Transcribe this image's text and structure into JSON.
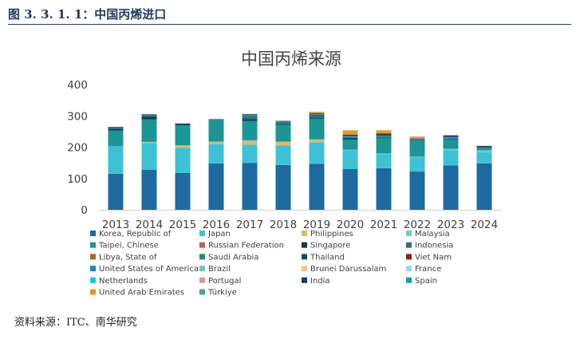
{
  "figure": {
    "label": "图 3. 3. 1. 1：中国丙烯进口",
    "source": "资料来源：ITC、南华研究"
  },
  "chart_data": {
    "type": "bar",
    "stacked": true,
    "title": "中国丙烯来源",
    "xlabel": "",
    "ylabel": "",
    "ylim": [
      0,
      400
    ],
    "yticks": [
      0,
      100,
      200,
      300,
      400
    ],
    "categories": [
      "2013",
      "2014",
      "2015",
      "2016",
      "2017",
      "2018",
      "2019",
      "2020",
      "2021",
      "2022",
      "2023",
      "2024"
    ],
    "grid": false,
    "legend_position": "bottom",
    "series": [
      {
        "name": "Korea, Republic of",
        "color": "#1c6aa0",
        "values": [
          115,
          128,
          118,
          148,
          150,
          143,
          147,
          130,
          133,
          122,
          142,
          148
        ]
      },
      {
        "name": "Japan",
        "color": "#3ec1d6",
        "values": [
          88,
          85,
          80,
          62,
          58,
          62,
          68,
          60,
          45,
          46,
          48,
          36
        ]
      },
      {
        "name": "Philippines",
        "color": "#d9b96a",
        "values": [
          0,
          2,
          6,
          6,
          12,
          12,
          8,
          0,
          0,
          0,
          0,
          0
        ]
      },
      {
        "name": "Malaysia",
        "color": "#6fc8d0",
        "values": [
          0,
          2,
          2,
          2,
          2,
          1,
          2,
          2,
          2,
          2,
          5,
          6
        ]
      },
      {
        "name": "Taipei, Chinese",
        "color": "#1b9595",
        "values": [
          50,
          72,
          64,
          68,
          62,
          52,
          66,
          32,
          48,
          50,
          28,
          6
        ]
      },
      {
        "name": "Russian Federation",
        "color": "#c95b50",
        "values": [
          0,
          0,
          0,
          0,
          0,
          0,
          0,
          0,
          0,
          0,
          0,
          0
        ]
      },
      {
        "name": "Singapore",
        "color": "#0f3b4d",
        "values": [
          6,
          8,
          4,
          0,
          6,
          2,
          4,
          4,
          0,
          0,
          0,
          0
        ]
      },
      {
        "name": "Indonesia",
        "color": "#2c6f8e",
        "values": [
          6,
          6,
          2,
          2,
          10,
          8,
          10,
          4,
          6,
          6,
          6,
          2
        ]
      },
      {
        "name": "Libya, State of",
        "color": "#9b6b2f",
        "values": [
          0,
          0,
          0,
          0,
          0,
          0,
          0,
          0,
          0,
          0,
          0,
          0
        ]
      },
      {
        "name": "Saudi Arabia",
        "color": "#2a8777",
        "values": [
          0,
          0,
          0,
          2,
          4,
          2,
          2,
          2,
          2,
          2,
          2,
          2
        ]
      },
      {
        "name": "Thailand",
        "color": "#17524f",
        "values": [
          0,
          2,
          0,
          0,
          2,
          2,
          2,
          0,
          0,
          0,
          0,
          0
        ]
      },
      {
        "name": "Viet Nam",
        "color": "#8b2020",
        "values": [
          0,
          0,
          0,
          0,
          0,
          0,
          0,
          0,
          2,
          0,
          0,
          0
        ]
      },
      {
        "name": "United States of America",
        "color": "#1a84c8",
        "values": [
          0,
          0,
          0,
          0,
          0,
          0,
          0,
          2,
          0,
          0,
          2,
          0
        ]
      },
      {
        "name": "Brazil",
        "color": "#74c3c3",
        "values": [
          0,
          0,
          0,
          0,
          0,
          0,
          0,
          0,
          0,
          0,
          0,
          0
        ]
      },
      {
        "name": "Brunei Darussalam",
        "color": "#f0c591",
        "values": [
          0,
          0,
          0,
          0,
          0,
          0,
          0,
          0,
          0,
          0,
          0,
          0
        ]
      },
      {
        "name": "France",
        "color": "#9ed6e3",
        "values": [
          0,
          0,
          0,
          0,
          0,
          0,
          0,
          0,
          0,
          0,
          0,
          0
        ]
      },
      {
        "name": "Netherlands",
        "color": "#14c8e0",
        "values": [
          0,
          0,
          0,
          0,
          0,
          0,
          0,
          0,
          0,
          0,
          0,
          0
        ]
      },
      {
        "name": "Portugal",
        "color": "#e09595",
        "values": [
          0,
          0,
          0,
          0,
          0,
          0,
          0,
          0,
          0,
          4,
          0,
          0
        ]
      },
      {
        "name": "India",
        "color": "#123d68",
        "values": [
          0,
          0,
          0,
          0,
          0,
          0,
          0,
          4,
          6,
          0,
          4,
          4
        ]
      },
      {
        "name": "Spain",
        "color": "#1a9ba8",
        "values": [
          0,
          0,
          0,
          0,
          0,
          0,
          0,
          0,
          0,
          0,
          0,
          0
        ]
      },
      {
        "name": "United Arab Emirates",
        "color": "#e39a2a",
        "values": [
          0,
          0,
          0,
          0,
          0,
          0,
          4,
          14,
          10,
          2,
          2,
          0
        ]
      },
      {
        "name": "Türkiye",
        "color": "#3fa7a7",
        "values": [
          0,
          0,
          0,
          0,
          0,
          0,
          0,
          0,
          0,
          0,
          0,
          0
        ]
      }
    ]
  }
}
